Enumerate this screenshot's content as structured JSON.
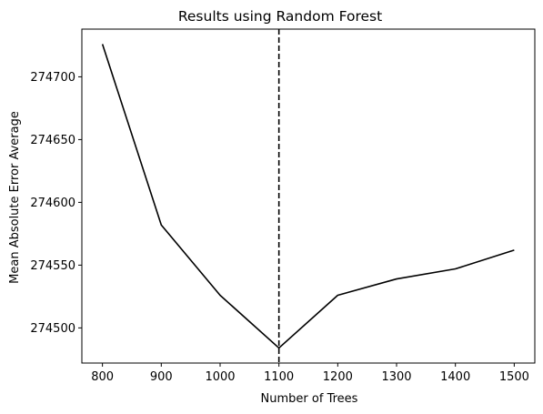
{
  "chart_data": {
    "type": "line",
    "title": "Results using Random Forest",
    "xlabel": "Number of Trees",
    "ylabel": "Mean Absolute Error Average",
    "x": [
      800,
      900,
      1000,
      1100,
      1200,
      1300,
      1400,
      1500
    ],
    "series": [
      {
        "values": [
          274726,
          274582,
          274526,
          274484,
          274526,
          274539,
          274547,
          274562
        ],
        "color": "#000000"
      }
    ],
    "xticks": [
      800,
      900,
      1000,
      1100,
      1200,
      1300,
      1400,
      1500
    ],
    "yticks": [
      274500,
      274550,
      274600,
      274650,
      274700
    ],
    "xlim": [
      765,
      1535
    ],
    "ylim": [
      274472,
      274738
    ],
    "vline": {
      "x": 1100,
      "style": "dashed",
      "color": "#000000"
    },
    "grid": false,
    "legend": "none"
  }
}
